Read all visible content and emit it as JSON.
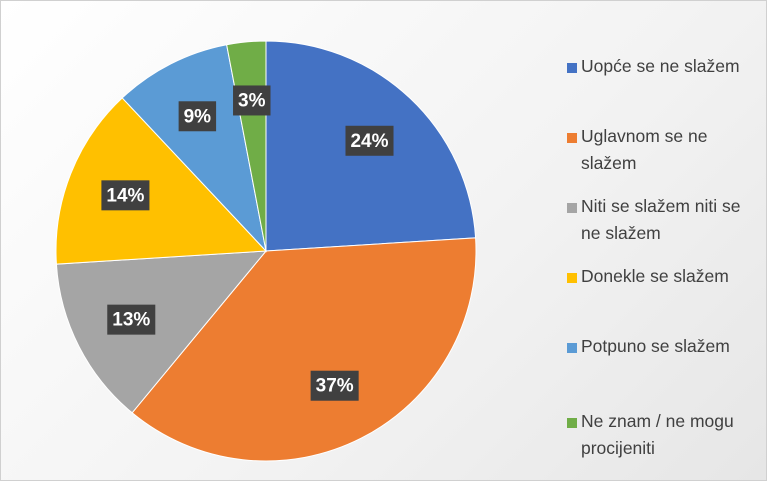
{
  "chart_data": {
    "type": "pie",
    "categories": [
      "Uopće se ne slažem",
      "Uglavnom se ne slažem",
      "Niti se slažem niti se ne slažem",
      "Donekle se slažem",
      "Potpuno se slažem",
      "Ne znam / ne mogu procijeniti"
    ],
    "values": [
      24,
      37,
      13,
      14,
      9,
      3
    ],
    "value_labels": [
      "24%",
      "37%",
      "13%",
      "14%",
      "9%",
      "3%"
    ],
    "colors": [
      "#4472c4",
      "#ed7d31",
      "#a5a5a5",
      "#ffc000",
      "#5b9bd5",
      "#70ad47"
    ],
    "legend": "right"
  }
}
